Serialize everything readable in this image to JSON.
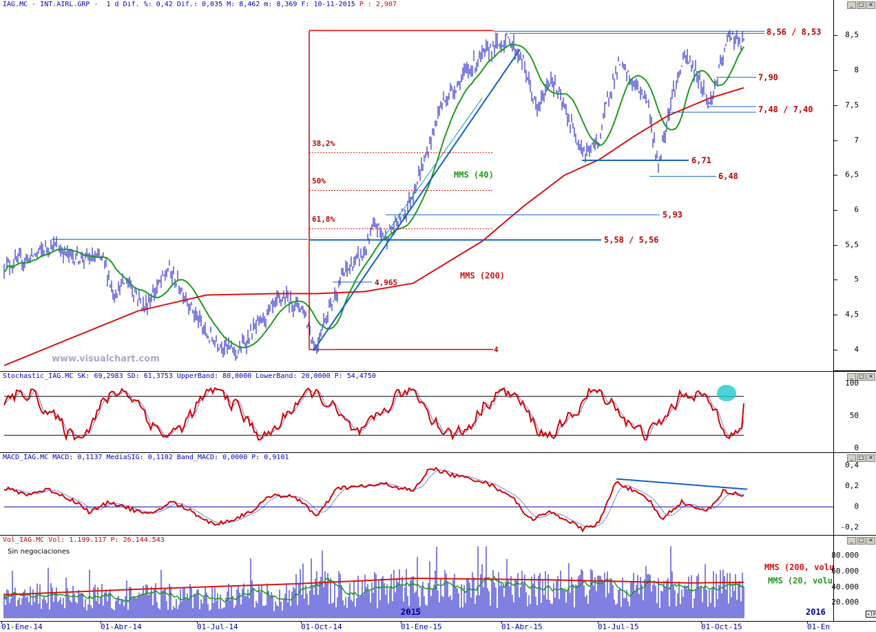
{
  "header": {
    "main": "IAG.MC - INT.AIRL.GRP -  1 d Dif. %: 0,42 Dif.: 0,035 M: 8,462 m: 8,369 F: 10-11-2015",
    "main_p": " P : 2,907",
    "stoch": "Stochastic_IAG.MC SK: 69,2983 SD: 61,3753 UpperBand: 80,0000 LowerBand: 20,0000 P: 54,4750",
    "macd": "MACD_IAG.MC MACD: 0,1137 MediaSIG: 0,1102 Band_MACD: 0,0000 P: 0,9101",
    "vol": "Vol_IAG.MC Vol: 1.199.117 P: 26.144.543"
  },
  "watermark": "www.visualchart.com",
  "sin_negociaciones": "Sin negociaciones",
  "x_labels": [
    "01-Ene-14",
    "01-Abr-14",
    "01-Jul-14",
    "01-Oct-14",
    "01-Ene-15",
    "01-Abr-15",
    "01-Jul-15",
    "01-Oct-15",
    "01-En"
  ],
  "year_labels": [
    "2015",
    "2016"
  ],
  "volume_scale_label": "x100",
  "colors": {
    "price": "#0000c0",
    "mms40": "#1a9a1a",
    "mms200": "#d81010",
    "annot": "#c00000",
    "line": "#1060c0",
    "stoch": "#d00000",
    "macd": "#d00000",
    "signal": "#0000c0"
  },
  "chart_data": [
    {
      "type": "line",
      "title": "IAG.MC - INT.AIRL.GRP - 1 d",
      "ylim": [
        3.7,
        8.85
      ],
      "y_ticks": [
        "8,5",
        "8",
        "7,5",
        "7",
        "6,5",
        "6",
        "5,5",
        "5",
        "4,5",
        "4"
      ],
      "series": [
        {
          "name": "MMS (40)",
          "color": "#1a9a1a"
        },
        {
          "name": "MMS (200)",
          "color": "#d81010"
        }
      ],
      "annotations": {
        "fib": [
          "38,2%",
          "50%",
          "61,8%"
        ],
        "levels": [
          "8,56 / 8,53",
          "7,90",
          "7,48 / 7,40",
          "6,71",
          "6,48",
          "5,93",
          "5,58 / 5,56",
          "4,965",
          "4"
        ],
        "mms40_label": "MMS (40)",
        "mms200_label": "MMS (200)"
      }
    },
    {
      "type": "line",
      "title": "Stochastic_IAG.MC",
      "ylim": [
        0,
        100
      ],
      "y_ticks": [
        "100",
        "50",
        "0"
      ],
      "bands": [
        80,
        20
      ],
      "last": {
        "SK": 69.2983,
        "SD": 61.3753
      }
    },
    {
      "type": "line",
      "title": "MACD_IAG.MC",
      "ylim": [
        -0.25,
        0.4
      ],
      "y_ticks": [
        "0,4",
        "0,2",
        "0",
        "-0,2"
      ],
      "last": {
        "MACD": 0.1137,
        "MediaSIG": 0.1102
      }
    },
    {
      "type": "bar",
      "title": "Vol_IAG.MC",
      "ylim": [
        0,
        95000
      ],
      "y_ticks": [
        "80.000",
        "60.000",
        "40.000",
        "20.000"
      ],
      "series": [
        {
          "name": "MMS (200, volu",
          "color": "#d81010"
        },
        {
          "name": "MMS (20, volu",
          "color": "#1a9a1a"
        }
      ],
      "last": {
        "Vol": 1199117
      }
    }
  ]
}
